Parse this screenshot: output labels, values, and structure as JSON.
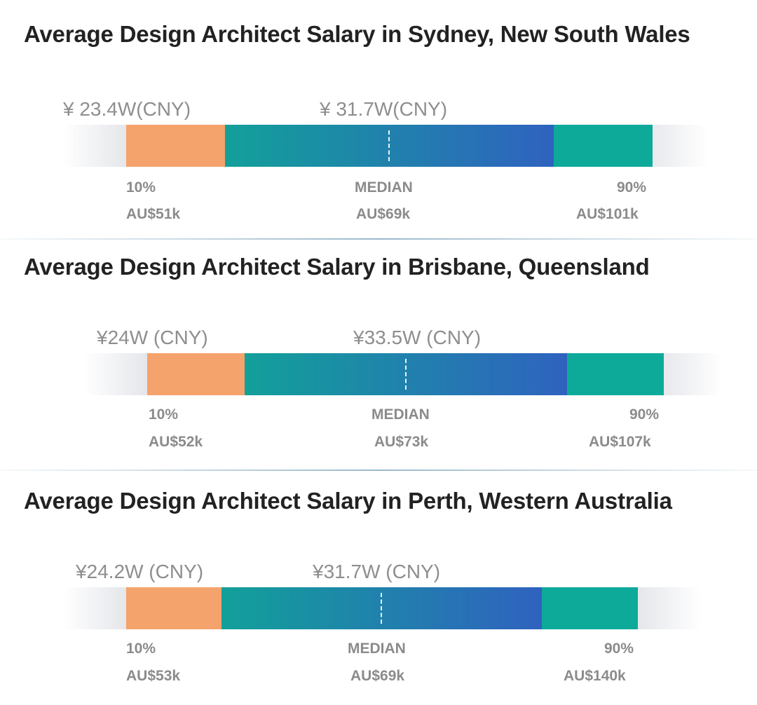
{
  "chart_data": [
    {
      "type": "bar",
      "title": "Average Design Architect Salary in Sydney, New South Wales",
      "percentiles": [
        {
          "label": "10%",
          "value_label": "AU$51k",
          "value": 51,
          "cny_label": "¥ 23.4W(CNY)"
        },
        {
          "label": "MEDIAN",
          "value_label": "AU$69k",
          "value": 69,
          "cny_label": "¥ 31.7W(CNY)"
        },
        {
          "label": "90%",
          "value_label": "AU$101k",
          "value": 101
        }
      ]
    },
    {
      "type": "bar",
      "title": "Average Design Architect Salary in Brisbane, Queensland",
      "percentiles": [
        {
          "label": "10%",
          "value_label": "AU$52k",
          "value": 52,
          "cny_label": "¥24W (CNY)"
        },
        {
          "label": "MEDIAN",
          "value_label": "AU$73k",
          "value": 73,
          "cny_label": "¥33.5W (CNY)"
        },
        {
          "label": "90%",
          "value_label": "AU$107k",
          "value": 107
        }
      ]
    },
    {
      "type": "bar",
      "title": "Average Design Architect Salary in Perth, Western Australia",
      "percentiles": [
        {
          "label": "10%",
          "value_label": "AU$53k",
          "value": 53,
          "cny_label": "¥24.2W (CNY)"
        },
        {
          "label": "MEDIAN",
          "value_label": "AU$69k",
          "value": 69,
          "cny_label": "¥31.7W (CNY)"
        },
        {
          "label": "90%",
          "value_label": "AU$140k",
          "value": 140
        }
      ]
    }
  ],
  "colors": {
    "low": "#f5a36c",
    "mid_start": "#12a09a",
    "mid_end": "#2f62bf",
    "high": "#0daa9a"
  }
}
